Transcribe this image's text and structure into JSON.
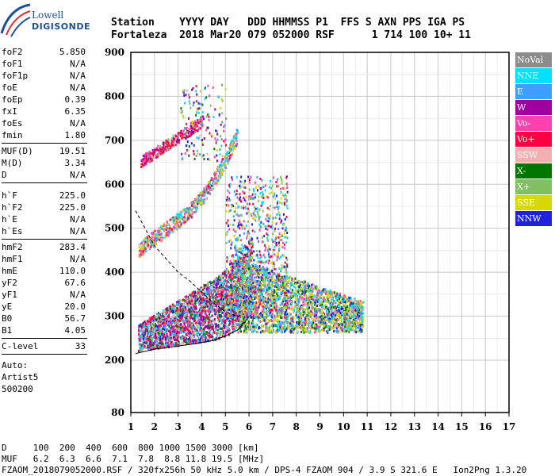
{
  "logo": {
    "line1": "Lowell",
    "line2": "DIGISONDE"
  },
  "header": {
    "line1": "Station    YYYY DAY   DDD HHMMSS P1  FFS S AXN PPS IGA PS",
    "line2": "Fortaleza  2018 Mar20 079 052000 RSF      1 714 100 10+ 11"
  },
  "params": {
    "group1": [
      {
        "k": "foF2",
        "v": "5.850"
      },
      {
        "k": "foF1",
        "v": "N/A"
      },
      {
        "k": "foF1p",
        "v": "N/A"
      },
      {
        "k": "foE",
        "v": "N/A"
      },
      {
        "k": "foEp",
        "v": "0.39"
      },
      {
        "k": "fxI",
        "v": "6.35"
      },
      {
        "k": "foEs",
        "v": "N/A"
      },
      {
        "k": "fmin",
        "v": "1.80"
      }
    ],
    "group2": [
      {
        "k": "MUF(D)",
        "v": "19.51"
      },
      {
        "k": "M(D)",
        "v": "3.34"
      },
      {
        "k": "D",
        "v": "N/A"
      }
    ],
    "group3": [
      {
        "k": "h`F",
        "v": "225.0"
      },
      {
        "k": "h`F2",
        "v": "225.0"
      },
      {
        "k": "h`E",
        "v": "N/A"
      },
      {
        "k": "h`Es",
        "v": "N/A"
      }
    ],
    "group4": [
      {
        "k": "hmF2",
        "v": "283.4"
      },
      {
        "k": "hmF1",
        "v": "N/A"
      },
      {
        "k": "hmE",
        "v": "110.0"
      },
      {
        "k": "yF2",
        "v": "67.6"
      },
      {
        "k": "yF1",
        "v": "N/A"
      },
      {
        "k": "yE",
        "v": "20.0"
      },
      {
        "k": "B0",
        "v": "56.7"
      },
      {
        "k": "B1",
        "v": "4.05"
      }
    ],
    "group5": [
      {
        "k": "C-level",
        "v": "33"
      }
    ],
    "auto": [
      "Auto:",
      "Artist5",
      "500200"
    ]
  },
  "legend": [
    {
      "label": "NoVal",
      "color": "#8c8c8c"
    },
    {
      "label": "NNE",
      "color": "#00e0ff"
    },
    {
      "label": "E",
      "color": "#3ca0ff"
    },
    {
      "label": "W",
      "color": "#a000a0"
    },
    {
      "label": "Vo-",
      "color": "#ff40b0"
    },
    {
      "label": "Vo+",
      "color": "#ff0040"
    },
    {
      "label": "SSW",
      "color": "#f4b0b0"
    },
    {
      "label": "X-",
      "color": "#007800"
    },
    {
      "label": "X+",
      "color": "#80c060"
    },
    {
      "label": "SSE",
      "color": "#d8d800"
    },
    {
      "label": "NNW",
      "color": "#2020e0"
    }
  ],
  "footer": {
    "line1": "D     100  200  400  600  800 1000 1500 3000 [km]",
    "line2": "MUF   6.2  6.3  6.6  7.1  7.8  8.8 11.8 19.5 [MHz]",
    "line3": "FZAOM_2018079052000.RSF / 320fx256h 50 kHz 5.0 km / DPS-4 FZAOM 904 / 3.9 S 321.6 E   Ion2Png 1.3.20"
  },
  "chart_data": {
    "type": "scatter",
    "x_ticks": [
      1,
      2,
      3,
      4,
      5,
      6,
      7,
      8,
      9,
      10,
      11,
      12,
      13,
      14,
      15,
      16,
      17
    ],
    "y_ticks": [
      80,
      200,
      300,
      400,
      500,
      600,
      700,
      800,
      900
    ],
    "xlim": [
      1,
      17
    ],
    "ylim": [
      80,
      900
    ],
    "grid": true,
    "legend_position": "right",
    "traces": [
      {
        "x": [
          1.2,
          2,
          3,
          4,
          4.5,
          5,
          5.5,
          5.8,
          6.0
        ],
        "y": [
          215,
          225,
          232,
          240,
          245,
          255,
          268,
          285,
          300
        ]
      },
      {
        "x": [
          1.2,
          2,
          2.5,
          3,
          3.5,
          4,
          4.5,
          5,
          5.5,
          5.8
        ],
        "y": [
          540,
          460,
          430,
          400,
          380,
          355,
          330,
          310,
          300,
          305
        ]
      }
    ]
  }
}
